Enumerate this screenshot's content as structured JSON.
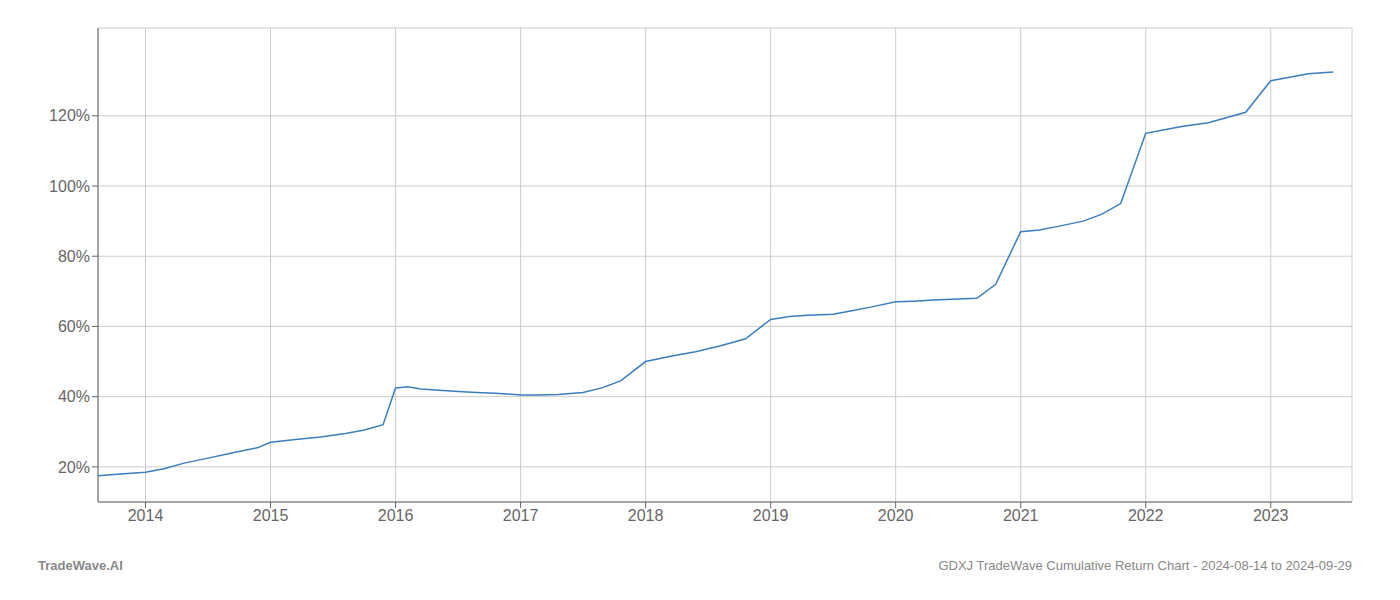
{
  "chart_data": {
    "type": "line",
    "x": [
      2013.62,
      2013.8,
      2014.0,
      2014.15,
      2014.3,
      2014.5,
      2014.7,
      2014.9,
      2015.0,
      2015.2,
      2015.4,
      2015.6,
      2015.75,
      2015.9,
      2016.0,
      2016.1,
      2016.2,
      2016.35,
      2016.5,
      2016.65,
      2016.8,
      2017.0,
      2017.15,
      2017.3,
      2017.5,
      2017.65,
      2017.8,
      2018.0,
      2018.2,
      2018.4,
      2018.6,
      2018.8,
      2019.0,
      2019.15,
      2019.3,
      2019.5,
      2019.65,
      2019.8,
      2020.0,
      2020.15,
      2020.3,
      2020.5,
      2020.65,
      2020.8,
      2021.0,
      2021.15,
      2021.3,
      2021.5,
      2021.65,
      2021.8,
      2022.0,
      2022.15,
      2022.3,
      2022.5,
      2022.65,
      2022.8,
      2023.0,
      2023.15,
      2023.3,
      2023.5
    ],
    "values": [
      17.5,
      18.0,
      18.5,
      19.5,
      21.0,
      22.5,
      24.0,
      25.5,
      27.0,
      27.8,
      28.5,
      29.5,
      30.5,
      32.0,
      42.5,
      42.8,
      42.2,
      41.8,
      41.5,
      41.2,
      41.0,
      40.5,
      40.5,
      40.6,
      41.2,
      42.5,
      44.5,
      50.0,
      51.5,
      52.8,
      54.5,
      56.5,
      62.0,
      62.8,
      63.2,
      63.5,
      64.5,
      65.5,
      67.0,
      67.2,
      67.5,
      67.8,
      68.0,
      72.0,
      87.0,
      87.5,
      88.5,
      90.0,
      92.0,
      95.0,
      115.0,
      116.0,
      117.0,
      118.0,
      119.5,
      121.0,
      130.0,
      131.0,
      132.0,
      132.5
    ],
    "color": "#3a7ebf",
    "xlim": [
      2013.62,
      2023.65
    ],
    "ylim": [
      10,
      145
    ],
    "xticks": [
      2014,
      2015,
      2016,
      2017,
      2018,
      2019,
      2020,
      2021,
      2022,
      2023
    ],
    "yticks": [
      {
        "value": 20,
        "label": "20%"
      },
      {
        "value": 40,
        "label": "40%"
      },
      {
        "value": 60,
        "label": "60%"
      },
      {
        "value": 80,
        "label": "80%"
      },
      {
        "value": 100,
        "label": "100%"
      },
      {
        "value": 120,
        "label": "120%"
      }
    ],
    "grid": true,
    "annotations": [
      "TradeWave.AI",
      "GDXJ TradeWave Cumulative Return Chart - 2024-08-14 to 2024-09-29"
    ]
  }
}
